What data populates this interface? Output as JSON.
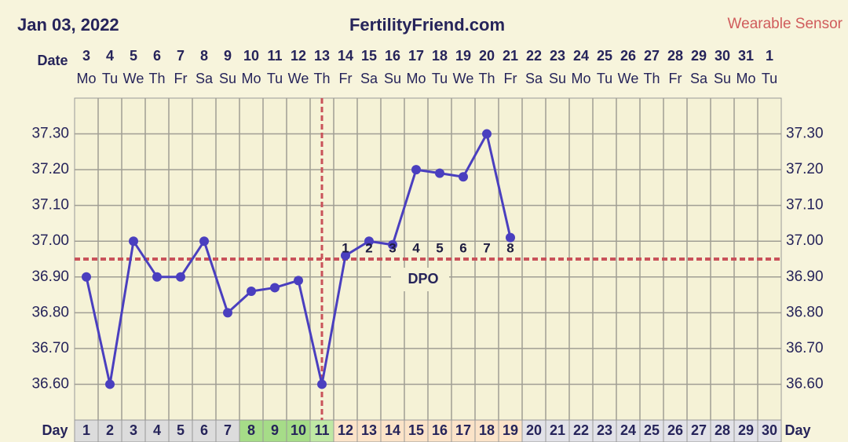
{
  "chart_data": {
    "type": "line",
    "date": "Jan 03, 2022",
    "title": "FertilityFriend.com",
    "annotation": "Wearable Sensor",
    "x_label_top": "Date",
    "x_label_bottom": "Day",
    "categories": [
      1,
      2,
      3,
      4,
      5,
      6,
      7,
      8,
      9,
      10,
      11,
      12,
      13,
      14,
      15,
      16,
      17,
      18,
      19,
      20,
      21,
      22,
      23,
      24,
      25,
      26,
      27,
      28,
      29,
      30
    ],
    "dates": [
      3,
      4,
      5,
      6,
      7,
      8,
      9,
      10,
      11,
      12,
      13,
      14,
      15,
      16,
      17,
      18,
      19,
      20,
      21,
      22,
      23,
      24,
      25,
      26,
      27,
      28,
      29,
      30,
      31,
      1
    ],
    "weekdays": [
      "Mo",
      "Tu",
      "We",
      "Th",
      "Fr",
      "Sa",
      "Su",
      "Mo",
      "Tu",
      "We",
      "Th",
      "Fr",
      "Sa",
      "Su",
      "Mo",
      "Tu",
      "We",
      "Th",
      "Fr",
      "Sa",
      "Su",
      "Mo",
      "Tu",
      "We",
      "Th",
      "Fr",
      "Sa",
      "Su",
      "Mo",
      "Tu"
    ],
    "values": [
      36.9,
      36.6,
      37.0,
      36.9,
      36.9,
      37.0,
      36.8,
      36.86,
      36.87,
      36.89,
      36.6,
      36.96,
      37.0,
      36.99,
      37.2,
      37.19,
      37.18,
      37.3,
      37.01,
      null,
      null,
      null,
      null,
      null,
      null,
      null,
      null,
      null,
      null,
      null
    ],
    "color": "#4a3fbf",
    "dpo": [
      null,
      null,
      null,
      null,
      null,
      null,
      null,
      null,
      null,
      null,
      null,
      1,
      2,
      3,
      4,
      5,
      6,
      7,
      8,
      null,
      null,
      null,
      null,
      null,
      null,
      null,
      null,
      null,
      null,
      null
    ],
    "dpo_label": "DPO",
    "coverline": 36.95,
    "ovulation_day": 11,
    "marker_color": "#c9525a",
    "day_colors": [
      "#dcdcdc",
      "#dcdcdc",
      "#dcdcdc",
      "#dcdcdc",
      "#dcdcdc",
      "#dcdcdc",
      "#dcdcdc",
      "#a6dc88",
      "#a6dc88",
      "#a6dc88",
      "#bfe8a4",
      "#fbe3c8",
      "#fbe3c8",
      "#fbe3c8",
      "#fbe3c8",
      "#fbe3c8",
      "#fbe3c8",
      "#fbe3c8",
      "#fbe3c8",
      "#e2e2e8",
      "#e2e2e8",
      "#e2e2e8",
      "#e2e2e8",
      "#e2e2e8",
      "#e2e2e8",
      "#e2e2e8",
      "#e2e2e8",
      "#e2e2e8",
      "#e2e2e8",
      "#e2e2e8"
    ],
    "ylim": [
      36.5,
      37.4
    ],
    "yticks": [
      {
        "value": 36.6,
        "label": "36.60"
      },
      {
        "value": 36.7,
        "label": "36.70"
      },
      {
        "value": 36.8,
        "label": "36.80"
      },
      {
        "value": 36.9,
        "label": "36.90"
      },
      {
        "value": 37.0,
        "label": "37.00"
      },
      {
        "value": 37.1,
        "label": "37.10"
      },
      {
        "value": 37.2,
        "label": "37.20"
      },
      {
        "value": 37.3,
        "label": "37.30"
      }
    ],
    "grid": true
  }
}
